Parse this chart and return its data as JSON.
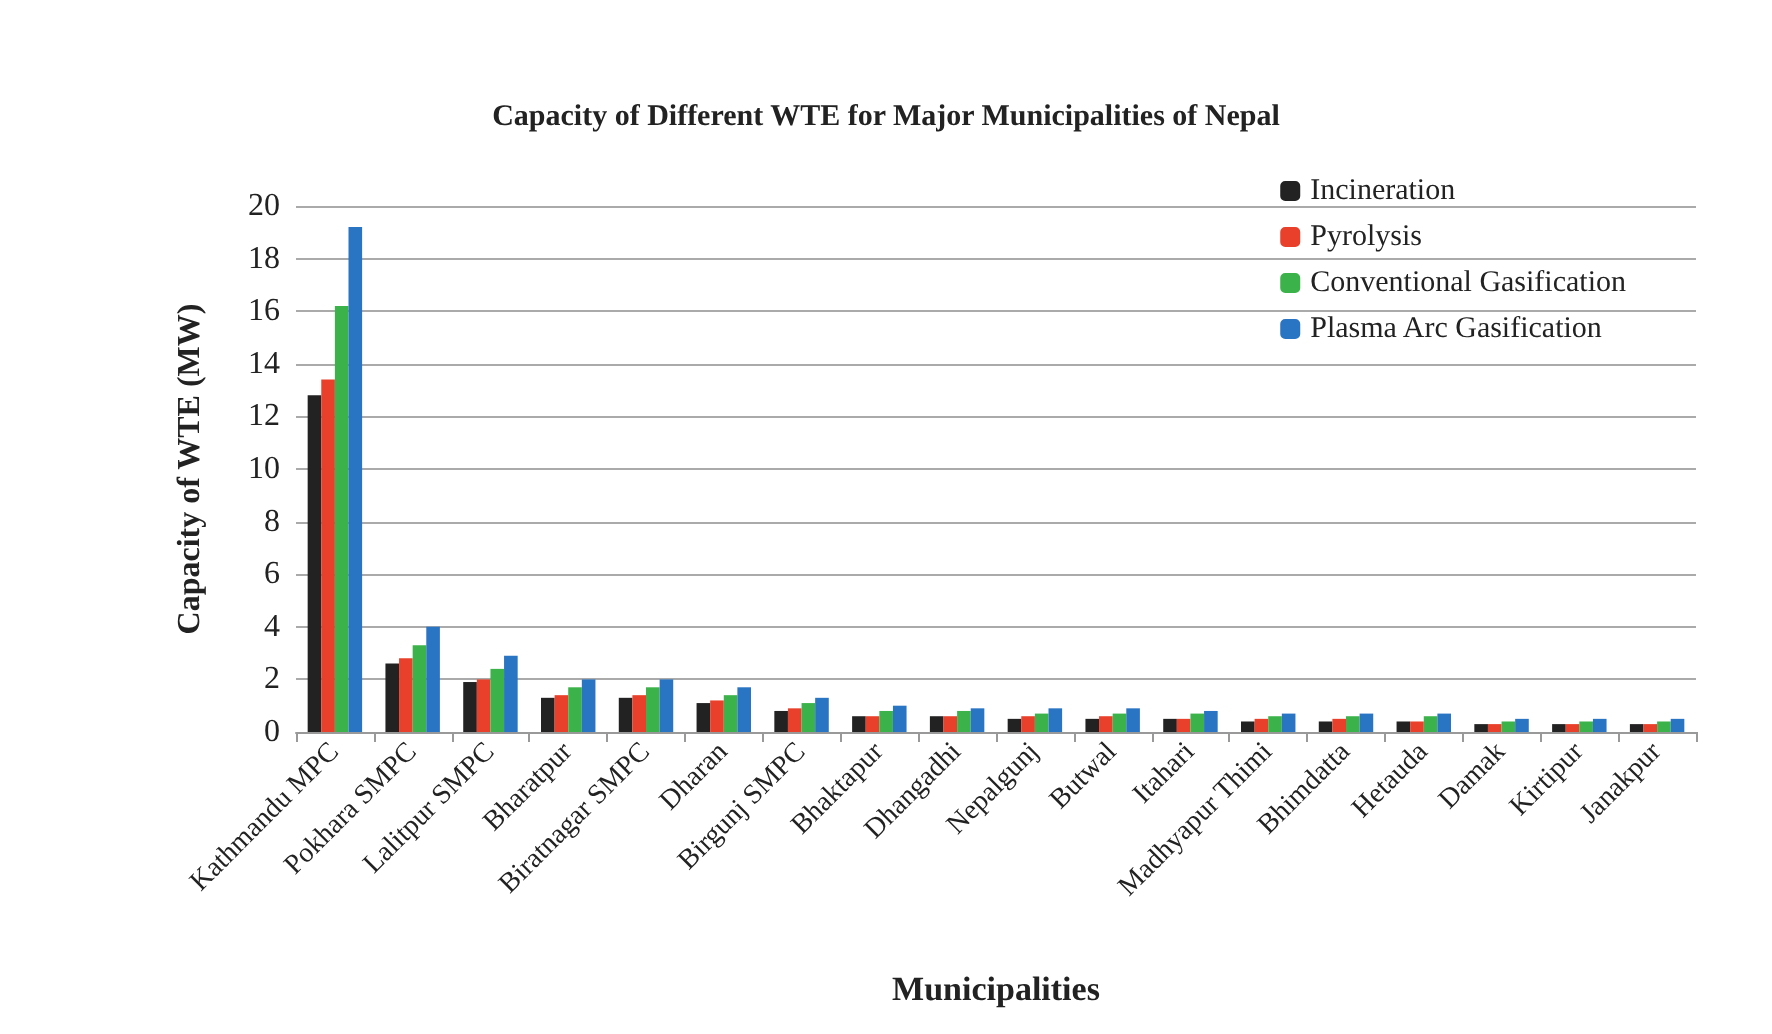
{
  "chart_data": {
    "type": "bar",
    "title": "Capacity of Different WTE for Major Municipalities of Nepal",
    "xlabel": "Municipalities",
    "ylabel": "Capacity of WTE (MW)",
    "categories": [
      "Kathmandu MPC",
      "Pokhara SMPC",
      "Lalitpur SMPC",
      "Bharatpur",
      "Biratnagar SMPC",
      "Dharan",
      "Birgunj SMPC",
      "Bhaktapur",
      "Dhangadhi",
      "Nepalgunj",
      "Butwal",
      "Itahari",
      "Madhyapur Thimi",
      "Bhimdatta",
      "Hetauda",
      "Damak",
      "Kirtipur",
      "Janakpur"
    ],
    "series": [
      {
        "name": "Incineration",
        "color": "#222222",
        "values": [
          12.8,
          2.6,
          1.9,
          1.3,
          1.3,
          1.1,
          0.8,
          0.6,
          0.6,
          0.5,
          0.5,
          0.5,
          0.4,
          0.4,
          0.4,
          0.3,
          0.3,
          0.3
        ]
      },
      {
        "name": "Pyrolysis",
        "color": "#e8402a",
        "values": [
          13.4,
          2.8,
          2.0,
          1.4,
          1.4,
          1.2,
          0.9,
          0.6,
          0.6,
          0.6,
          0.6,
          0.5,
          0.5,
          0.5,
          0.4,
          0.3,
          0.3,
          0.3
        ]
      },
      {
        "name": "Conventional Gasification",
        "color": "#3cb34a",
        "values": [
          16.2,
          3.3,
          2.4,
          1.7,
          1.7,
          1.4,
          1.1,
          0.8,
          0.8,
          0.7,
          0.7,
          0.7,
          0.6,
          0.6,
          0.6,
          0.4,
          0.4,
          0.4
        ]
      },
      {
        "name": "Plasma Arc Gasification",
        "color": "#2a74c4",
        "values": [
          19.2,
          4.0,
          2.9,
          2.0,
          2.0,
          1.7,
          1.3,
          1.0,
          0.9,
          0.9,
          0.9,
          0.8,
          0.7,
          0.7,
          0.7,
          0.5,
          0.5,
          0.5
        ]
      }
    ],
    "ylim": [
      0,
      20
    ],
    "yticks": [
      0,
      2,
      4,
      6,
      8,
      10,
      12,
      14,
      16,
      18,
      20
    ],
    "grid": "y",
    "legend": "top right"
  }
}
